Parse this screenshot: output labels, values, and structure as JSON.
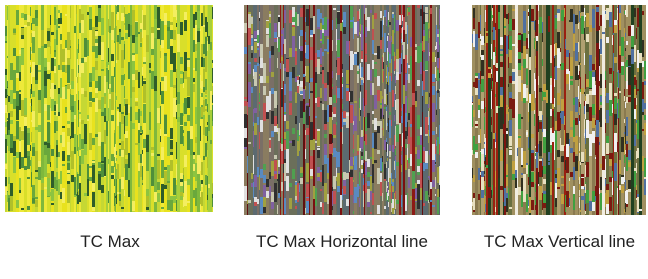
{
  "figures": [
    {
      "caption": "TC Max"
    },
    {
      "caption": "TC Max Horizontal line"
    },
    {
      "caption": "TC Max Vertical line"
    }
  ]
}
